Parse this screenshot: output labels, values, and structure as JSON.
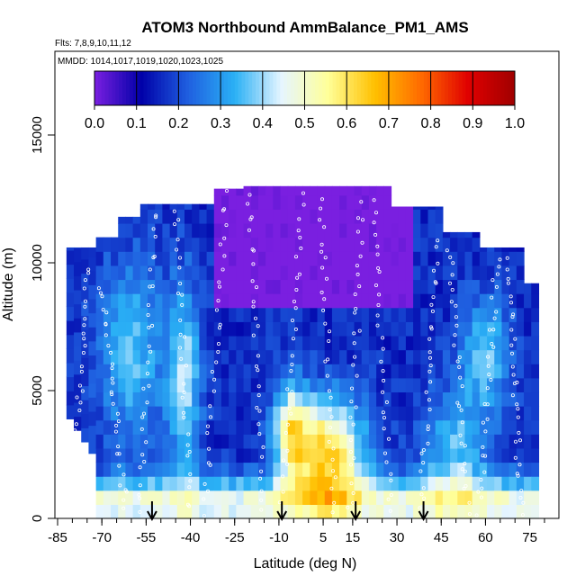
{
  "chart_data": {
    "type": "heatmap",
    "title": "ATOM3 Northbound AmmBalance_PM1_AMS",
    "subtitle": "Flts: 7,8,9,10,11,12",
    "annotation": "MMDD: 1014,1017,1019,1020,1023,1025",
    "xlabel": "Latitude (deg N)",
    "ylabel": "Altitude (m)",
    "xlim": [
      -85,
      84
    ],
    "ylim": [
      0,
      17500
    ],
    "xticks": [
      -85,
      -70,
      -55,
      -40,
      -25,
      -10,
      5,
      15,
      30,
      45,
      60,
      75
    ],
    "yticks": [
      0,
      5000,
      10000,
      15000
    ],
    "colorbar": {
      "placement": "top",
      "range": [
        0,
        1
      ],
      "ticks": [
        "0.0",
        "0.1",
        "0.2",
        "0.3",
        "0.4",
        "0.5",
        "0.6",
        "0.7",
        "0.8",
        "0.9",
        "1.0"
      ],
      "colors": [
        "#7a1fe0",
        "#0000a8",
        "#1f5fe0",
        "#2ab0f5",
        "#e6f5ff",
        "#ffff99",
        "#ffc000",
        "#ff6a00",
        "#e00000",
        "#a00000"
      ]
    },
    "sampling_arrows_lat": [
      -53,
      -9,
      16,
      39
    ],
    "grid": false,
    "legend": "none"
  }
}
